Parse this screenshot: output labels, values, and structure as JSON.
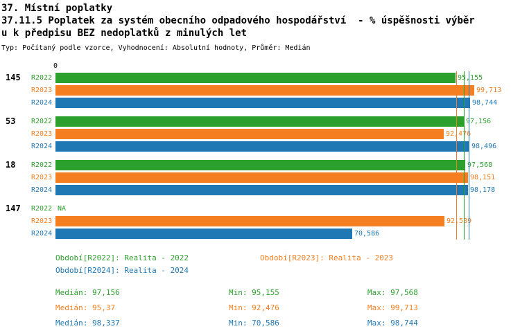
{
  "header": {
    "title_line1": "37. Místní poplatky",
    "title_line2": "37.11.5 Poplatek za systém obecního odpadového hospodářství  - % úspěšnosti výběr",
    "title_line3": "u k předpisu BEZ nedoplatků z minulých let",
    "subtitle": "Typ: Počítaný podle vzorce, Vyhodnocení: Absolutní hodnoty, Průměr: Medián"
  },
  "chart_data": {
    "type": "bar",
    "orientation": "horizontal",
    "xlim": [
      0,
      100
    ],
    "grid": false,
    "legend_position": "bottom",
    "axis": {
      "zero_label": "0"
    },
    "groups": [
      "145",
      "53",
      "18",
      "147"
    ],
    "series": [
      {
        "name": "R2022",
        "color": "#2ca02c",
        "legend_label": "Období[R2022]: Realita - 2022",
        "values": [
          95.155,
          97.156,
          97.568,
          null
        ],
        "value_labels": [
          "95,155",
          "97,156",
          "97,568",
          "NA"
        ],
        "median": 97.156,
        "stats": {
          "median": "Medián: 97,156",
          "min": "Min: 95,155",
          "max": "Max: 97,568"
        }
      },
      {
        "name": "R2023",
        "color": "#f57e20",
        "legend_label": "Období[R2023]: Realita - 2023",
        "values": [
          99.713,
          92.476,
          98.151,
          92.589
        ],
        "value_labels": [
          "99,713",
          "92,476",
          "98,151",
          "92,589"
        ],
        "median": 95.37,
        "stats": {
          "median": "Medián: 95,37",
          "min": "Min: 92,476",
          "max": "Max: 99,713"
        }
      },
      {
        "name": "R2024",
        "color": "#1f77b4",
        "legend_label": "Období[R2024]: Realita - 2024",
        "values": [
          98.744,
          98.496,
          98.178,
          70.586
        ],
        "value_labels": [
          "98,744",
          "98,496",
          "98,178",
          "70,586"
        ],
        "median": 98.337,
        "stats": {
          "median": "Medián: 98,337",
          "min": "Min: 70,586",
          "max": "Max: 98,744"
        }
      }
    ]
  }
}
